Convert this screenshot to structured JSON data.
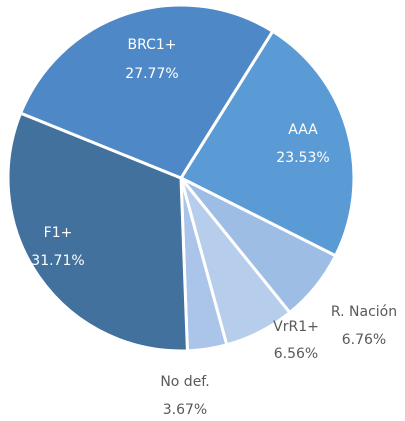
{
  "chart_data": {
    "type": "pie",
    "categories": [
      "AAA",
      "R. Nación",
      "VrR1+",
      "No def.",
      "F1+",
      "BRC1+"
    ],
    "values": [
      23.53,
      6.76,
      6.56,
      3.67,
      31.71,
      27.77
    ],
    "value_labels": [
      "23.53%",
      "6.76%",
      "6.56%",
      "3.67%",
      "31.71%",
      "27.77%"
    ],
    "colors": [
      "#5b9bd5",
      "#9dbde4",
      "#b7cdec",
      "#aac5e9",
      "#41719c",
      "#4f88c6"
    ]
  }
}
